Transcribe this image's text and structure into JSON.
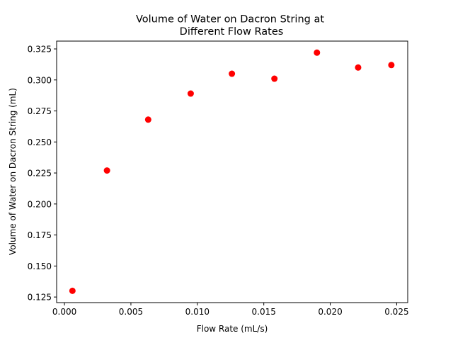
{
  "chart_data": {
    "type": "scatter",
    "title_lines": [
      "Volume of Water on Dacron String at",
      "Different Flow Rates"
    ],
    "xlabel": "Flow Rate (mL/s)",
    "ylabel": "Volume of Water on Dacron String (mL)",
    "xlim": [
      -0.00059,
      0.02583
    ],
    "ylim": [
      0.1205,
      0.3313
    ],
    "xticks": [
      0.0,
      0.005,
      0.01,
      0.015,
      0.02,
      0.025
    ],
    "xtick_labels": [
      "0.000",
      "0.005",
      "0.010",
      "0.015",
      "0.020",
      "0.025"
    ],
    "yticks": [
      0.125,
      0.15,
      0.175,
      0.2,
      0.225,
      0.25,
      0.275,
      0.3,
      0.325
    ],
    "ytick_labels": [
      "0.125",
      "0.150",
      "0.175",
      "0.200",
      "0.225",
      "0.250",
      "0.275",
      "0.300",
      "0.325"
    ],
    "grid": false,
    "marker_color": "#ff0000",
    "points": [
      {
        "x": 0.0006,
        "y": 0.13
      },
      {
        "x": 0.0032,
        "y": 0.227
      },
      {
        "x": 0.0063,
        "y": 0.268
      },
      {
        "x": 0.0095,
        "y": 0.289
      },
      {
        "x": 0.0126,
        "y": 0.305
      },
      {
        "x": 0.0158,
        "y": 0.301
      },
      {
        "x": 0.019,
        "y": 0.322
      },
      {
        "x": 0.0221,
        "y": 0.31
      },
      {
        "x": 0.0246,
        "y": 0.312
      }
    ]
  }
}
